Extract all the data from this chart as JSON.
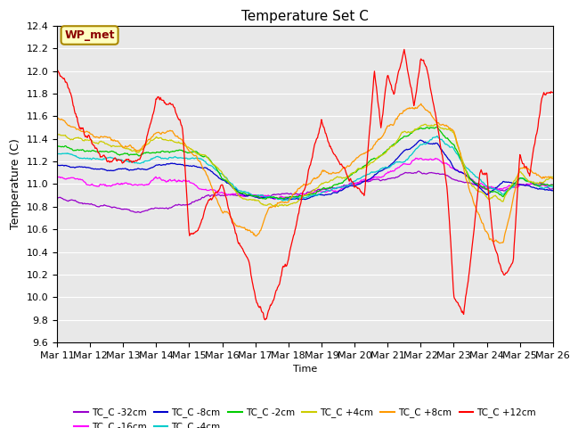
{
  "title": "Temperature Set C",
  "xlabel": "Time",
  "ylabel": "Temperature (C)",
  "ylim": [
    9.6,
    12.4
  ],
  "xlim": [
    0,
    15
  ],
  "x_tick_labels": [
    "Mar 11",
    "Mar 12",
    "Mar 13",
    "Mar 14",
    "Mar 15",
    "Mar 16",
    "Mar 17",
    "Mar 18",
    "Mar 19",
    "Mar 20",
    "Mar 21",
    "Mar 22",
    "Mar 23",
    "Mar 24",
    "Mar 25",
    "Mar 26"
  ],
  "annotation_text": "WP_met",
  "annotation_color": "#8B0000",
  "annotation_bg": "#FFFFC0",
  "annotation_edge": "#AA8800",
  "bg_color": "#E8E8E8",
  "grid_color": "#FFFFFF",
  "series": [
    {
      "label": "TC_C -32cm",
      "color": "#9900CC"
    },
    {
      "label": "TC_C -16cm",
      "color": "#FF00FF"
    },
    {
      "label": "TC_C -8cm",
      "color": "#0000CC"
    },
    {
      "label": "TC_C -4cm",
      "color": "#00CCCC"
    },
    {
      "label": "TC_C -2cm",
      "color": "#00CC00"
    },
    {
      "label": "TC_C +4cm",
      "color": "#CCCC00"
    },
    {
      "label": "TC_C +8cm",
      "color": "#FF9900"
    },
    {
      "label": "TC_C +12cm",
      "color": "#FF0000"
    }
  ],
  "legend_ncol_row1": 6,
  "legend_ncol_row2": 2
}
